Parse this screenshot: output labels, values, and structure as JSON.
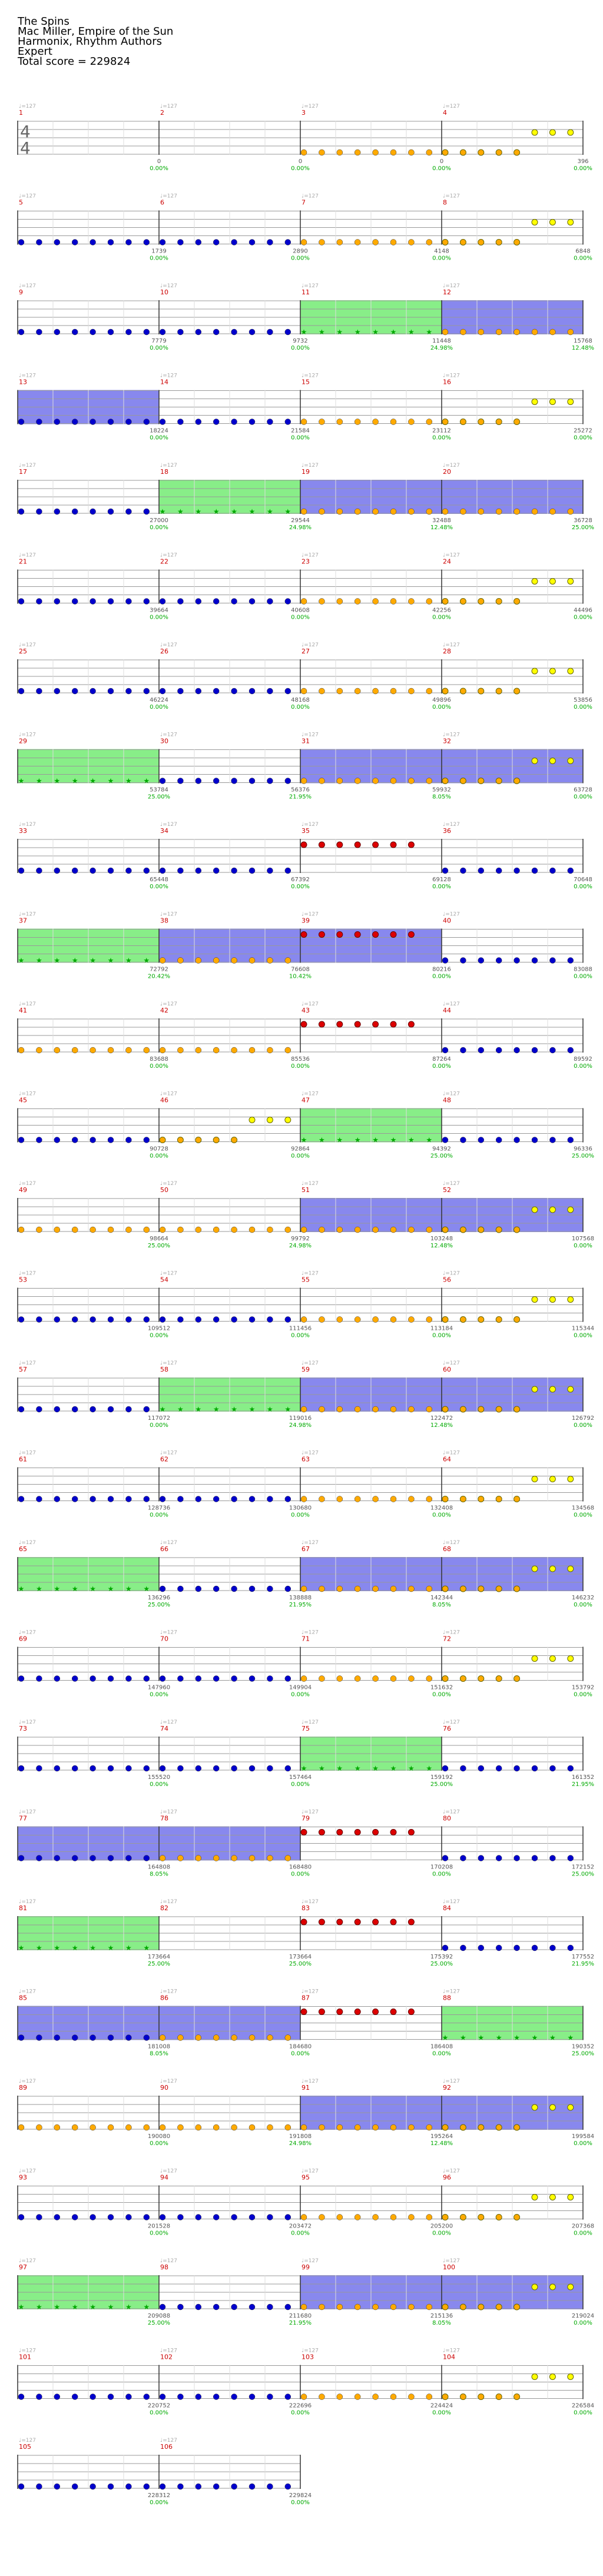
{
  "header": {
    "song": "The Spins",
    "artist": "Mac Miller, Empire of the Sun",
    "charter": "Harmonix, Rhythm Authors",
    "difficulty": "Expert",
    "total_score": "Total score = 229824"
  },
  "colors": {
    "staff": "#999999",
    "measure_number": "#cc0000",
    "score_text": "#555555",
    "percent_text": "#00aa00",
    "overdrive_fill": "#88ee88",
    "solo_fill": "#8888ee",
    "open_note": "#0000cc",
    "yellow_note": "#ffff00",
    "red_note": "#dd0000",
    "orange_note": "#ffaa00",
    "star_note": "#00aa00"
  },
  "time_signature": "4/4",
  "bpm_label": "♩=127",
  "chart_data": {
    "type": "table",
    "measures": [
      {
        "n": "1",
        "score": "0",
        "pct": "0.00%",
        "notes": "none"
      },
      {
        "n": "2",
        "score": "0",
        "pct": "0.00%",
        "notes": "none"
      },
      {
        "n": "3",
        "score": "0",
        "pct": "0.00%",
        "notes": "orange"
      },
      {
        "n": "4",
        "score": "396",
        "pct": "0.00%",
        "notes": "orange-yellow"
      },
      {
        "n": "5",
        "score": "1739",
        "pct": "0.00%",
        "notes": "open"
      },
      {
        "n": "6",
        "score": "2890",
        "pct": "0.00%",
        "notes": "open"
      },
      {
        "n": "7",
        "score": "4148",
        "pct": "0.00%",
        "notes": "orange"
      },
      {
        "n": "8",
        "score": "6848",
        "pct": "0.00%",
        "notes": "orange-yellow"
      },
      {
        "n": "9",
        "score": "7779",
        "pct": "0.00%",
        "notes": "open"
      },
      {
        "n": "10",
        "score": "9732",
        "pct": "0.00%",
        "notes": "open"
      },
      {
        "n": "11",
        "score": "11448",
        "pct": "24.98%",
        "notes": "star",
        "od": true
      },
      {
        "n": "12",
        "score": "15768",
        "pct": "12.48%",
        "notes": "orange",
        "solo": true
      },
      {
        "n": "13",
        "score": "18224",
        "pct": "0.00%",
        "notes": "open",
        "solo": true
      },
      {
        "n": "14",
        "score": "21584",
        "pct": "0.00%",
        "notes": "open"
      },
      {
        "n": "15",
        "score": "23112",
        "pct": "0.00%",
        "notes": "orange"
      },
      {
        "n": "16",
        "score": "25272",
        "pct": "0.00%",
        "notes": "orange-yellow"
      },
      {
        "n": "17",
        "score": "27000",
        "pct": "0.00%",
        "notes": "open"
      },
      {
        "n": "18",
        "score": "29544",
        "pct": "24.98%",
        "notes": "star",
        "od": true
      },
      {
        "n": "19",
        "score": "32488",
        "pct": "12.48%",
        "notes": "orange",
        "solo": true
      },
      {
        "n": "20",
        "score": "36728",
        "pct": "25.00%",
        "notes": "orange",
        "solo": true
      },
      {
        "n": "21",
        "score": "39664",
        "pct": "0.00%",
        "notes": "open"
      },
      {
        "n": "22",
        "score": "40608",
        "pct": "0.00%",
        "notes": "open"
      },
      {
        "n": "23",
        "score": "42256",
        "pct": "0.00%",
        "notes": "orange"
      },
      {
        "n": "24",
        "score": "44496",
        "pct": "0.00%",
        "notes": "orange-yellow"
      },
      {
        "n": "25",
        "score": "46224",
        "pct": "0.00%",
        "notes": "open"
      },
      {
        "n": "26",
        "score": "48168",
        "pct": "0.00%",
        "notes": "open"
      },
      {
        "n": "27",
        "score": "49896",
        "pct": "0.00%",
        "notes": "orange"
      },
      {
        "n": "28",
        "score": "53856",
        "pct": "0.00%",
        "notes": "orange-yellow"
      },
      {
        "n": "29",
        "score": "53784",
        "pct": "25.00%",
        "notes": "star",
        "od": true
      },
      {
        "n": "30",
        "score": "56376",
        "pct": "21.95%",
        "notes": "open"
      },
      {
        "n": "31",
        "score": "59932",
        "pct": "8.05%",
        "notes": "orange",
        "solo": true
      },
      {
        "n": "32",
        "score": "63728",
        "pct": "0.00%",
        "notes": "orange-yellow",
        "solo": true
      },
      {
        "n": "33",
        "score": "65448",
        "pct": "0.00%",
        "notes": "open"
      },
      {
        "n": "34",
        "score": "67392",
        "pct": "0.00%",
        "notes": "open"
      },
      {
        "n": "35",
        "score": "69128",
        "pct": "0.00%",
        "notes": "red"
      },
      {
        "n": "36",
        "score": "70648",
        "pct": "0.00%",
        "notes": "open"
      },
      {
        "n": "37",
        "score": "72792",
        "pct": "20.42%",
        "notes": "star",
        "od": true
      },
      {
        "n": "38",
        "score": "76608",
        "pct": "10.42%",
        "notes": "orange",
        "solo": true
      },
      {
        "n": "39",
        "score": "80216",
        "pct": "0.00%",
        "notes": "red",
        "solo": true
      },
      {
        "n": "40",
        "score": "83088",
        "pct": "0.00%",
        "notes": "open"
      },
      {
        "n": "41",
        "score": "83688",
        "pct": "0.00%",
        "notes": "orange"
      },
      {
        "n": "42",
        "score": "85536",
        "pct": "0.00%",
        "notes": "orange"
      },
      {
        "n": "43",
        "score": "87264",
        "pct": "0.00%",
        "notes": "red"
      },
      {
        "n": "44",
        "score": "89592",
        "pct": "0.00%",
        "notes": "open"
      },
      {
        "n": "45",
        "score": "90728",
        "pct": "0.00%",
        "notes": "open"
      },
      {
        "n": "46",
        "score": "92864",
        "pct": "0.00%",
        "notes": "orange-yellow"
      },
      {
        "n": "47",
        "score": "94392",
        "pct": "25.00%",
        "notes": "star",
        "od": true
      },
      {
        "n": "48",
        "score": "96336",
        "pct": "25.00%",
        "notes": "open"
      },
      {
        "n": "49",
        "score": "98664",
        "pct": "25.00%",
        "notes": "orange"
      },
      {
        "n": "50",
        "score": "99792",
        "pct": "24.98%",
        "notes": "orange"
      },
      {
        "n": "51",
        "score": "103248",
        "pct": "12.48%",
        "notes": "orange",
        "solo": true
      },
      {
        "n": "52",
        "score": "107568",
        "pct": "0.00%",
        "notes": "orange-yellow",
        "solo": true
      },
      {
        "n": "53",
        "score": "109512",
        "pct": "0.00%",
        "notes": "open"
      },
      {
        "n": "54",
        "score": "111456",
        "pct": "0.00%",
        "notes": "open"
      },
      {
        "n": "55",
        "score": "113184",
        "pct": "0.00%",
        "notes": "orange"
      },
      {
        "n": "56",
        "score": "115344",
        "pct": "0.00%",
        "notes": "orange-yellow"
      },
      {
        "n": "57",
        "score": "117072",
        "pct": "0.00%",
        "notes": "open"
      },
      {
        "n": "58",
        "score": "119016",
        "pct": "24.98%",
        "notes": "star",
        "od": true
      },
      {
        "n": "59",
        "score": "122472",
        "pct": "12.48%",
        "notes": "orange",
        "solo": true
      },
      {
        "n": "60",
        "score": "126792",
        "pct": "0.00%",
        "notes": "orange-yellow",
        "solo": true
      },
      {
        "n": "61",
        "score": "128736",
        "pct": "0.00%",
        "notes": "open"
      },
      {
        "n": "62",
        "score": "130680",
        "pct": "0.00%",
        "notes": "open"
      },
      {
        "n": "63",
        "score": "132408",
        "pct": "0.00%",
        "notes": "orange"
      },
      {
        "n": "64",
        "score": "134568",
        "pct": "0.00%",
        "notes": "orange-yellow"
      },
      {
        "n": "65",
        "score": "136296",
        "pct": "25.00%",
        "notes": "star",
        "od": true
      },
      {
        "n": "66",
        "score": "138888",
        "pct": "21.95%",
        "notes": "open"
      },
      {
        "n": "67",
        "score": "142344",
        "pct": "8.05%",
        "notes": "orange",
        "solo": true
      },
      {
        "n": "68",
        "score": "146232",
        "pct": "0.00%",
        "notes": "orange-yellow",
        "solo": true
      },
      {
        "n": "69",
        "score": "147960",
        "pct": "0.00%",
        "notes": "open"
      },
      {
        "n": "70",
        "score": "149904",
        "pct": "0.00%",
        "notes": "open"
      },
      {
        "n": "71",
        "score": "151632",
        "pct": "0.00%",
        "notes": "orange"
      },
      {
        "n": "72",
        "score": "153792",
        "pct": "0.00%",
        "notes": "orange-yellow"
      },
      {
        "n": "73",
        "score": "155520",
        "pct": "0.00%",
        "notes": "open"
      },
      {
        "n": "74",
        "score": "157464",
        "pct": "0.00%",
        "notes": "open"
      },
      {
        "n": "75",
        "score": "159192",
        "pct": "25.00%",
        "notes": "star",
        "od": true
      },
      {
        "n": "76",
        "score": "161352",
        "pct": "21.95%",
        "notes": "open"
      },
      {
        "n": "77",
        "score": "164808",
        "pct": "8.05%",
        "notes": "open",
        "solo": true
      },
      {
        "n": "78",
        "score": "168480",
        "pct": "0.00%",
        "notes": "orange",
        "solo": true
      },
      {
        "n": "79",
        "score": "170208",
        "pct": "0.00%",
        "notes": "red"
      },
      {
        "n": "80",
        "score": "172152",
        "pct": "25.00%",
        "notes": "open"
      },
      {
        "n": "81",
        "score": "173664",
        "pct": "25.00%",
        "notes": "star",
        "od": true
      },
      {
        "n": "82",
        "score": "173664",
        "pct": "25.00%",
        "notes": "none"
      },
      {
        "n": "83",
        "score": "175392",
        "pct": "25.00%",
        "notes": "red"
      },
      {
        "n": "84",
        "score": "177552",
        "pct": "21.95%",
        "notes": "open"
      },
      {
        "n": "85",
        "score": "181008",
        "pct": "8.05%",
        "notes": "open",
        "solo": true
      },
      {
        "n": "86",
        "score": "184680",
        "pct": "0.00%",
        "notes": "orange",
        "solo": true
      },
      {
        "n": "87",
        "score": "186408",
        "pct": "0.00%",
        "notes": "red"
      },
      {
        "n": "88",
        "score": "190352",
        "pct": "25.00%",
        "notes": "star",
        "od": true
      },
      {
        "n": "89",
        "score": "190080",
        "pct": "0.00%",
        "notes": "orange"
      },
      {
        "n": "90",
        "score": "191808",
        "pct": "24.98%",
        "notes": "orange"
      },
      {
        "n": "91",
        "score": "195264",
        "pct": "12.48%",
        "notes": "orange",
        "solo": true
      },
      {
        "n": "92",
        "score": "199584",
        "pct": "0.00%",
        "notes": "orange-yellow",
        "solo": true
      },
      {
        "n": "93",
        "score": "201528",
        "pct": "0.00%",
        "notes": "open"
      },
      {
        "n": "94",
        "score": "203472",
        "pct": "0.00%",
        "notes": "open"
      },
      {
        "n": "95",
        "score": "205200",
        "pct": "0.00%",
        "notes": "orange"
      },
      {
        "n": "96",
        "score": "207368",
        "pct": "0.00%",
        "notes": "orange-yellow"
      },
      {
        "n": "97",
        "score": "209088",
        "pct": "25.00%",
        "notes": "star",
        "od": true
      },
      {
        "n": "98",
        "score": "211680",
        "pct": "21.95%",
        "notes": "open"
      },
      {
        "n": "99",
        "score": "215136",
        "pct": "8.05%",
        "notes": "orange",
        "solo": true
      },
      {
        "n": "100",
        "score": "219024",
        "pct": "0.00%",
        "notes": "orange-yellow",
        "solo": true
      },
      {
        "n": "101",
        "score": "220752",
        "pct": "0.00%",
        "notes": "open"
      },
      {
        "n": "102",
        "score": "222696",
        "pct": "0.00%",
        "notes": "open"
      },
      {
        "n": "103",
        "score": "224424",
        "pct": "0.00%",
        "notes": "orange"
      },
      {
        "n": "104",
        "score": "226584",
        "pct": "0.00%",
        "notes": "orange-yellow"
      },
      {
        "n": "105",
        "score": "228312",
        "pct": "0.00%",
        "notes": "open"
      },
      {
        "n": "106",
        "score": "229824",
        "pct": "0.00%",
        "notes": "open"
      }
    ]
  }
}
